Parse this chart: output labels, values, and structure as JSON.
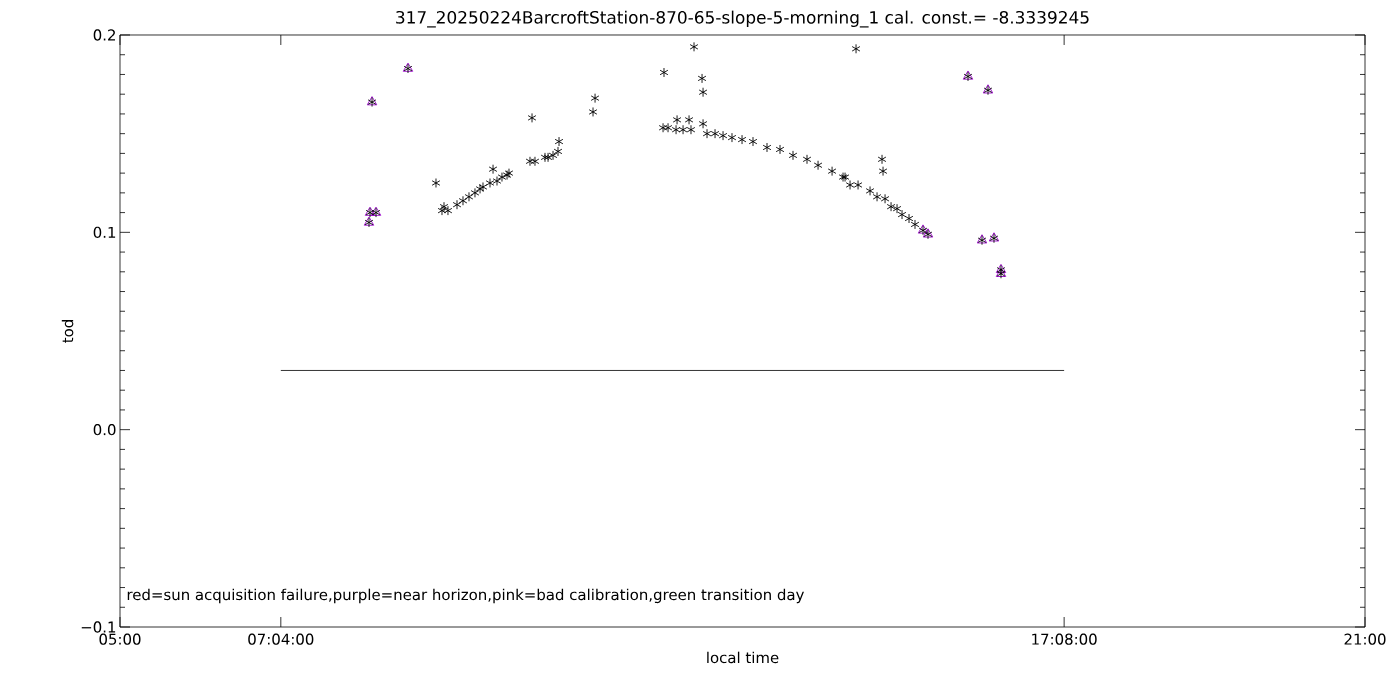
{
  "chart_data": {
    "type": "scatter",
    "title": "317_20250224BarcroftStation-870-65-slope-5-morning_1 cal. const.= -8.3339245",
    "xlabel": "local time",
    "ylabel": "tod",
    "xlim": [
      5,
      21
    ],
    "ylim": [
      -0.1,
      0.2
    ],
    "xticks": [
      {
        "value": 5,
        "label": "05:00"
      },
      {
        "value": 7.0667,
        "label": "07:04:00"
      },
      {
        "value": 17.1333,
        "label": "17:08:00"
      },
      {
        "value": 21,
        "label": "21:00"
      }
    ],
    "yticks": [
      {
        "value": -0.1,
        "label": "−0.1"
      },
      {
        "value": 0,
        "label": "0.0"
      },
      {
        "value": 0.1,
        "label": "0.1"
      },
      {
        "value": 0.2,
        "label": "0.2"
      }
    ],
    "annotations": [
      "red=sun acquisition failure,purple=near horizon,pink=bad calibration,green transition day"
    ],
    "series": [
      {
        "color": "#9900cc",
        "marker": "triangle",
        "x": [
          8.2,
          8.213,
          8.239,
          8.29,
          8.701,
          15.32,
          15.384,
          15.898,
          16.078,
          16.155,
          16.232,
          16.322,
          16.322
        ],
        "values": [
          0.105,
          0.11,
          0.166,
          0.11,
          0.183,
          0.101,
          0.099,
          0.179,
          0.096,
          0.172,
          0.097,
          0.079,
          0.081
        ]
      },
      {
        "color": "#000000",
        "marker": "cross",
        "x": [
          8.2,
          8.213,
          8.239,
          8.29,
          8.701,
          9.061,
          9.138,
          9.164,
          9.215,
          9.331,
          9.408,
          9.485,
          9.562,
          9.627,
          9.665,
          9.755,
          9.794,
          9.845,
          9.909,
          9.974,
          9.999,
          10.269,
          10.295,
          10.333,
          10.462,
          10.501,
          10.565,
          10.629,
          10.642,
          11.079,
          11.105,
          11.979,
          11.991,
          12.043,
          12.146,
          12.159,
          12.236,
          12.313,
          12.338,
          12.377,
          12.48,
          12.493,
          12.493,
          12.544,
          12.647,
          12.75,
          12.865,
          12.994,
          13.135,
          13.315,
          13.482,
          13.649,
          13.829,
          13.971,
          14.151,
          14.292,
          14.318,
          14.382,
          14.459,
          14.485,
          14.639,
          14.729,
          14.793,
          14.806,
          14.832,
          14.909,
          14.986,
          15.05,
          15.14,
          15.217,
          15.32,
          15.384,
          15.898,
          16.078,
          16.155,
          16.232,
          16.322,
          16.322
        ],
        "values": [
          0.105,
          0.11,
          0.166,
          0.11,
          0.183,
          0.125,
          0.111,
          0.113,
          0.111,
          0.114,
          0.116,
          0.118,
          0.12,
          0.122,
          0.123,
          0.125,
          0.132,
          0.126,
          0.128,
          0.129,
          0.13,
          0.136,
          0.158,
          0.136,
          0.138,
          0.138,
          0.139,
          0.141,
          0.146,
          0.161,
          0.168,
          0.153,
          0.181,
          0.153,
          0.152,
          0.157,
          0.152,
          0.157,
          0.152,
          0.194,
          0.178,
          0.171,
          0.155,
          0.15,
          0.15,
          0.149,
          0.148,
          0.147,
          0.146,
          0.143,
          0.142,
          0.139,
          0.137,
          0.134,
          0.131,
          0.128,
          0.128,
          0.124,
          0.193,
          0.124,
          0.121,
          0.118,
          0.137,
          0.131,
          0.117,
          0.113,
          0.112,
          0.109,
          0.107,
          0.104,
          0.101,
          0.099,
          0.179,
          0.096,
          0.172,
          0.097,
          0.079,
          0.081
        ]
      },
      {
        "type": "line",
        "color": "#000000",
        "marker": "none",
        "x": [
          7.0667,
          17.1333
        ],
        "values": [
          0.03,
          0.03
        ]
      }
    ]
  }
}
